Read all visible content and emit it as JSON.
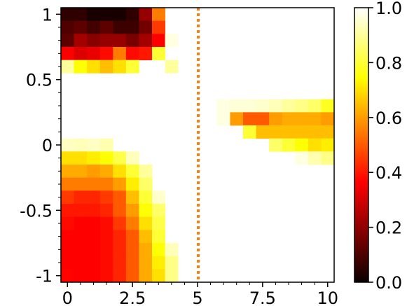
{
  "chart_data": {
    "type": "heatmap",
    "title": "",
    "xlabel": "",
    "ylabel": "",
    "x_range": [
      -0.25,
      10.25
    ],
    "y_range": [
      -1.05,
      1.05
    ],
    "x_ticks": [
      0,
      2.5,
      5,
      7.5,
      10
    ],
    "x_tick_labels": [
      "0",
      "2.5",
      "5",
      "7.5",
      "10"
    ],
    "y_ticks": [
      -1,
      -0.5,
      0,
      0.5,
      1
    ],
    "y_tick_labels": [
      "-1",
      "-0.5",
      "0",
      "0.5",
      "1"
    ],
    "x_centers": [
      0,
      0.5,
      1,
      1.5,
      2,
      2.5,
      3,
      3.5,
      4,
      4.5,
      5,
      5.5,
      6,
      6.5,
      7,
      7.5,
      8,
      8.5,
      9,
      9.5,
      10
    ],
    "y_centers": [
      1,
      0.9,
      0.8,
      0.7,
      0.6,
      0.5,
      0.4,
      0.3,
      0.2,
      0.1,
      0,
      -0.1,
      -0.2,
      -0.3,
      -0.4,
      -0.5,
      -0.6,
      -0.7,
      -0.8,
      -0.9,
      -1
    ],
    "z": [
      [
        0.05,
        0.05,
        0.02,
        0.02,
        0.02,
        0.05,
        0.2,
        0.55,
        null,
        null,
        null,
        null,
        null,
        null,
        null,
        null,
        null,
        null,
        null,
        null,
        null
      ],
      [
        0.1,
        0.12,
        0.08,
        0.12,
        0.07,
        0.07,
        0.15,
        0.45,
        null,
        null,
        null,
        null,
        null,
        null,
        null,
        null,
        null,
        null,
        null,
        null,
        null
      ],
      [
        0.12,
        0.22,
        0.18,
        0.2,
        0.2,
        0.16,
        0.22,
        0.35,
        0.97,
        null,
        null,
        null,
        null,
        null,
        null,
        null,
        null,
        null,
        null,
        null,
        null
      ],
      [
        0.35,
        0.3,
        0.32,
        0.38,
        0.55,
        0.38,
        0.4,
        0.8,
        null,
        null,
        null,
        null,
        null,
        null,
        null,
        null,
        null,
        null,
        null,
        null,
        null
      ],
      [
        0.9,
        0.75,
        0.7,
        0.65,
        0.7,
        0.8,
        null,
        null,
        0.9,
        null,
        null,
        null,
        null,
        null,
        null,
        null,
        null,
        null,
        null,
        null,
        null
      ],
      [
        null,
        null,
        null,
        null,
        null,
        null,
        null,
        null,
        null,
        null,
        null,
        null,
        null,
        null,
        null,
        null,
        null,
        null,
        null,
        null,
        null
      ],
      [
        null,
        null,
        null,
        null,
        null,
        null,
        null,
        null,
        null,
        null,
        null,
        null,
        null,
        null,
        null,
        null,
        null,
        null,
        null,
        null,
        null
      ],
      [
        null,
        null,
        null,
        null,
        null,
        null,
        null,
        null,
        null,
        null,
        null,
        null,
        0.97,
        0.96,
        0.96,
        0.95,
        0.93,
        0.9,
        0.88,
        0.85,
        0.78
      ],
      [
        null,
        null,
        null,
        null,
        null,
        null,
        null,
        null,
        null,
        null,
        null,
        null,
        0.97,
        0.6,
        0.5,
        0.5,
        0.6,
        0.62,
        0.62,
        0.62,
        0.6
      ],
      [
        null,
        null,
        null,
        null,
        null,
        null,
        null,
        null,
        null,
        null,
        null,
        null,
        null,
        null,
        0.8,
        0.65,
        0.65,
        0.65,
        0.65,
        0.65,
        0.65
      ],
      [
        0.94,
        0.93,
        0.94,
        0.92,
        null,
        null,
        null,
        null,
        null,
        null,
        null,
        null,
        null,
        null,
        null,
        null,
        0.85,
        0.8,
        0.75,
        0.7,
        0.72
      ],
      [
        0.7,
        0.7,
        0.72,
        0.75,
        0.82,
        0.93,
        null,
        null,
        null,
        null,
        null,
        null,
        null,
        null,
        null,
        null,
        null,
        null,
        0.97,
        0.92,
        0.88
      ],
      [
        0.62,
        0.62,
        0.6,
        0.62,
        0.7,
        0.8,
        0.9,
        null,
        null,
        null,
        null,
        null,
        null,
        null,
        null,
        null,
        null,
        null,
        null,
        null,
        null
      ],
      [
        0.55,
        0.55,
        0.55,
        0.55,
        0.6,
        0.72,
        0.85,
        null,
        null,
        null,
        null,
        null,
        null,
        null,
        null,
        null,
        null,
        null,
        null,
        null,
        null
      ],
      [
        0.45,
        0.42,
        0.42,
        0.45,
        0.5,
        0.65,
        0.8,
        0.95,
        null,
        null,
        null,
        null,
        null,
        null,
        null,
        null,
        null,
        null,
        null,
        null,
        null
      ],
      [
        0.4,
        0.4,
        0.4,
        0.42,
        0.5,
        0.6,
        0.75,
        0.85,
        null,
        null,
        null,
        null,
        null,
        null,
        null,
        null,
        null,
        null,
        null,
        null,
        null
      ],
      [
        0.38,
        0.36,
        0.35,
        0.38,
        0.45,
        0.55,
        0.7,
        0.82,
        null,
        null,
        null,
        null,
        null,
        null,
        null,
        null,
        null,
        null,
        null,
        null,
        null
      ],
      [
        0.35,
        0.35,
        0.35,
        0.38,
        0.42,
        0.5,
        0.65,
        0.8,
        null,
        null,
        null,
        null,
        null,
        null,
        null,
        null,
        null,
        null,
        null,
        null,
        null
      ],
      [
        0.36,
        0.35,
        0.35,
        0.38,
        0.42,
        0.5,
        0.62,
        0.75,
        0.93,
        null,
        null,
        null,
        null,
        null,
        null,
        null,
        null,
        null,
        null,
        null,
        null
      ],
      [
        0.35,
        0.36,
        0.36,
        0.38,
        0.42,
        0.5,
        0.62,
        0.72,
        0.88,
        null,
        null,
        null,
        null,
        null,
        null,
        null,
        null,
        null,
        null,
        null,
        null
      ],
      [
        0.37,
        0.36,
        0.36,
        0.38,
        0.42,
        0.5,
        0.62,
        0.7,
        0.88,
        null,
        null,
        null,
        null,
        null,
        null,
        null,
        null,
        null,
        null,
        null,
        null
      ]
    ],
    "vline": {
      "x": 5,
      "color": "#ff7f0e",
      "style": "dotted"
    },
    "colorbar": {
      "range": [
        0,
        1
      ],
      "ticks": [
        0,
        0.2,
        0.4,
        0.6,
        0.8,
        1.0
      ],
      "tick_labels": [
        "0.0",
        "0.2",
        "0.4",
        "0.6",
        "0.8",
        "1.0"
      ],
      "colormap": "hot"
    },
    "grid": false,
    "legend": "none"
  }
}
